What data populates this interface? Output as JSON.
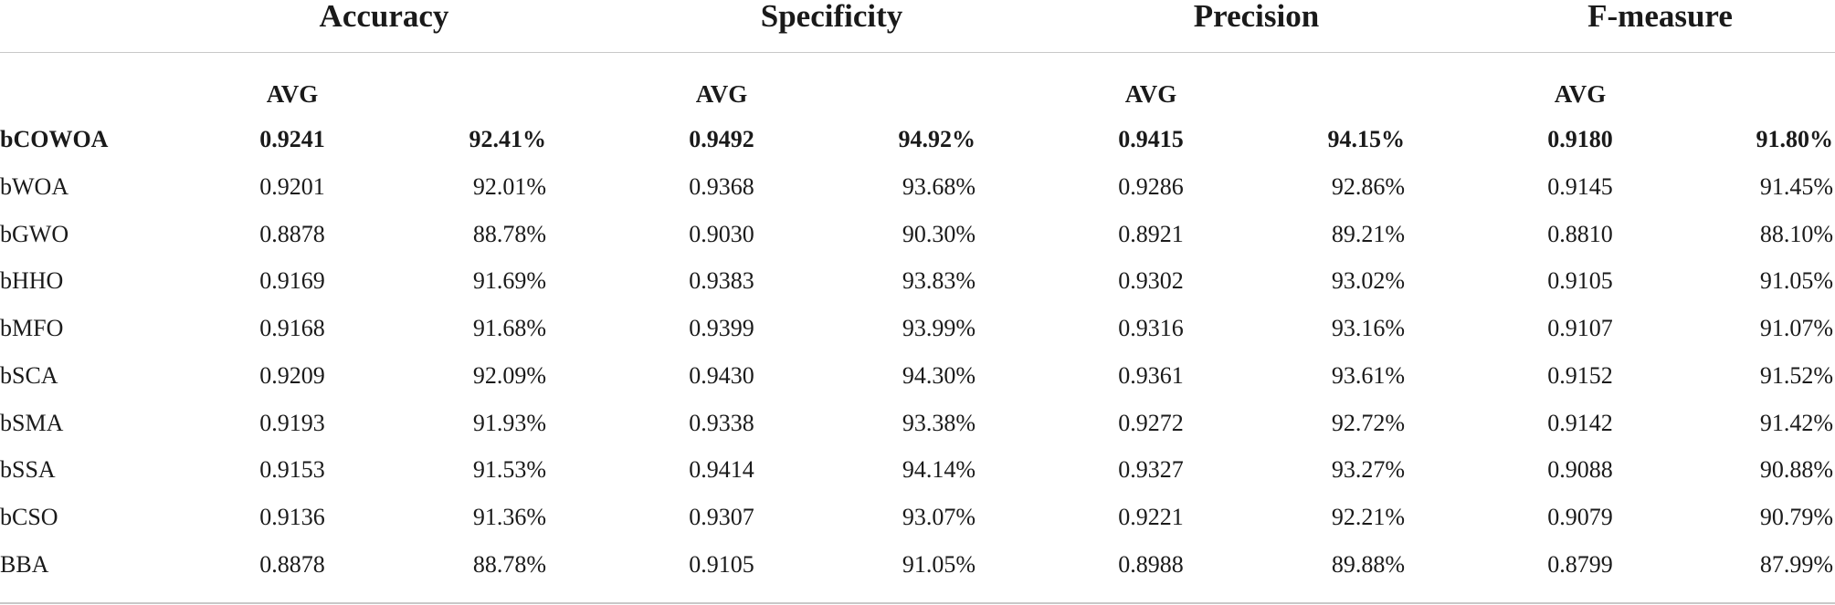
{
  "metrics": [
    {
      "title": "Accuracy",
      "subheader": "AVG"
    },
    {
      "title": "Specificity",
      "subheader": "AVG"
    },
    {
      "title": "Precision",
      "subheader": "AVG"
    },
    {
      "title": "F-measure",
      "subheader": "AVG"
    }
  ],
  "rows": [
    {
      "name": "bCOWOA",
      "bold": true,
      "values": [
        [
          "0.9241",
          "92.41%"
        ],
        [
          "0.9492",
          "94.92%"
        ],
        [
          "0.9415",
          "94.15%"
        ],
        [
          "0.9180",
          "91.80%"
        ]
      ]
    },
    {
      "name": "bWOA",
      "bold": false,
      "values": [
        [
          "0.9201",
          "92.01%"
        ],
        [
          "0.9368",
          "93.68%"
        ],
        [
          "0.9286",
          "92.86%"
        ],
        [
          "0.9145",
          "91.45%"
        ]
      ]
    },
    {
      "name": "bGWO",
      "bold": false,
      "values": [
        [
          "0.8878",
          "88.78%"
        ],
        [
          "0.9030",
          "90.30%"
        ],
        [
          "0.8921",
          "89.21%"
        ],
        [
          "0.8810",
          "88.10%"
        ]
      ]
    },
    {
      "name": "bHHO",
      "bold": false,
      "values": [
        [
          "0.9169",
          "91.69%"
        ],
        [
          "0.9383",
          "93.83%"
        ],
        [
          "0.9302",
          "93.02%"
        ],
        [
          "0.9105",
          "91.05%"
        ]
      ]
    },
    {
      "name": "bMFO",
      "bold": false,
      "values": [
        [
          "0.9168",
          "91.68%"
        ],
        [
          "0.9399",
          "93.99%"
        ],
        [
          "0.9316",
          "93.16%"
        ],
        [
          "0.9107",
          "91.07%"
        ]
      ]
    },
    {
      "name": "bSCA",
      "bold": false,
      "values": [
        [
          "0.9209",
          "92.09%"
        ],
        [
          "0.9430",
          "94.30%"
        ],
        [
          "0.9361",
          "93.61%"
        ],
        [
          "0.9152",
          "91.52%"
        ]
      ]
    },
    {
      "name": "bSMA",
      "bold": false,
      "values": [
        [
          "0.9193",
          "91.93%"
        ],
        [
          "0.9338",
          "93.38%"
        ],
        [
          "0.9272",
          "92.72%"
        ],
        [
          "0.9142",
          "91.42%"
        ]
      ]
    },
    {
      "name": "bSSA",
      "bold": false,
      "values": [
        [
          "0.9153",
          "91.53%"
        ],
        [
          "0.9414",
          "94.14%"
        ],
        [
          "0.9327",
          "93.27%"
        ],
        [
          "0.9088",
          "90.88%"
        ]
      ]
    },
    {
      "name": "bCSO",
      "bold": false,
      "values": [
        [
          "0.9136",
          "91.36%"
        ],
        [
          "0.9307",
          "93.07%"
        ],
        [
          "0.9221",
          "92.21%"
        ],
        [
          "0.9079",
          "90.79%"
        ]
      ]
    },
    {
      "name": "BBA",
      "bold": false,
      "values": [
        [
          "0.8878",
          "88.78%"
        ],
        [
          "0.9105",
          "91.05%"
        ],
        [
          "0.8988",
          "89.88%"
        ],
        [
          "0.8799",
          "87.99%"
        ]
      ]
    }
  ]
}
